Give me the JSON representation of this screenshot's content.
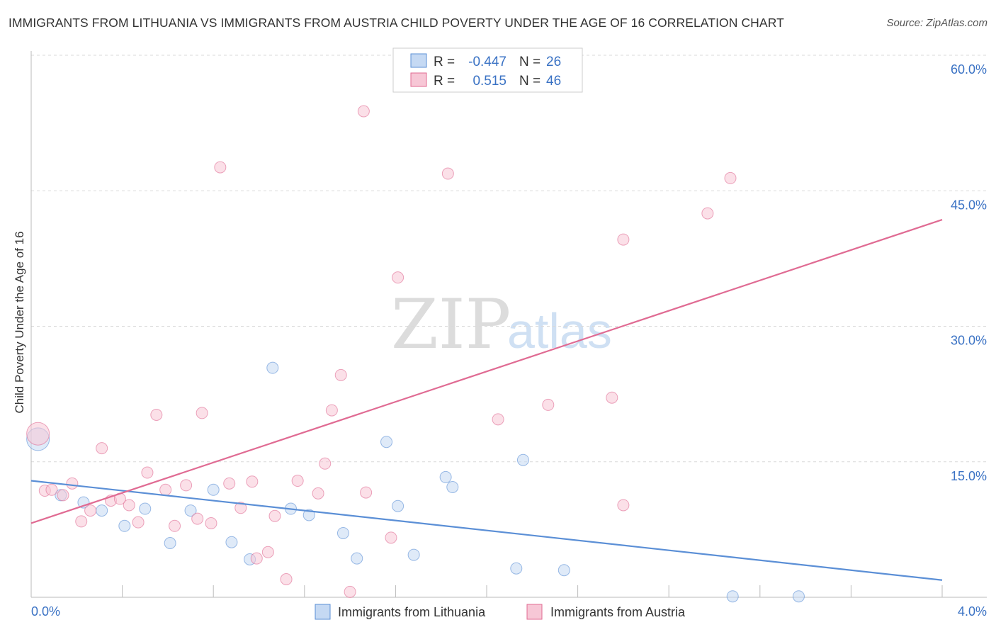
{
  "chart_data": {
    "type": "scatter",
    "title": "IMMIGRANTS FROM LITHUANIA VS IMMIGRANTS FROM AUSTRIA CHILD POVERTY UNDER THE AGE OF 16 CORRELATION CHART",
    "source": "Source: ZipAtlas.com",
    "xlabel": "",
    "ylabel": "Child Poverty Under the Age of 16",
    "xlim": [
      0,
      4
    ],
    "ylim": [
      0,
      60
    ],
    "x_tick_labels": [
      "0.0%",
      "4.0%"
    ],
    "y_ticks": [
      15,
      30,
      45,
      60
    ],
    "y_tick_labels": [
      "15.0%",
      "30.0%",
      "45.0%",
      "60.0%"
    ],
    "watermark": {
      "zip": "ZIP",
      "atlas": "atlas"
    },
    "legend_stats": {
      "r_label": "R =",
      "n_label": "N =",
      "rows": [
        {
          "r": "-0.447",
          "n": "26"
        },
        {
          "r": "0.515",
          "n": "46"
        }
      ]
    },
    "series": [
      {
        "name": "Immigrants from Lithuania",
        "color": "#5b8fd6",
        "fill": "#c5d9f3",
        "trend": {
          "x": [
            0,
            4
          ],
          "y": [
            12.9,
            1.9
          ]
        },
        "points": [
          {
            "x": 0.03,
            "y": 17.5,
            "big": true
          },
          {
            "x": 0.13,
            "y": 11.3
          },
          {
            "x": 0.23,
            "y": 10.5
          },
          {
            "x": 0.31,
            "y": 9.6
          },
          {
            "x": 0.41,
            "y": 7.9
          },
          {
            "x": 0.5,
            "y": 9.8
          },
          {
            "x": 0.61,
            "y": 6.0
          },
          {
            "x": 0.7,
            "y": 9.6
          },
          {
            "x": 0.8,
            "y": 11.9
          },
          {
            "x": 0.88,
            "y": 6.1
          },
          {
            "x": 0.96,
            "y": 4.2
          },
          {
            "x": 1.06,
            "y": 25.4
          },
          {
            "x": 1.14,
            "y": 9.8
          },
          {
            "x": 1.22,
            "y": 9.1
          },
          {
            "x": 1.37,
            "y": 7.1
          },
          {
            "x": 1.43,
            "y": 4.3
          },
          {
            "x": 1.56,
            "y": 17.2
          },
          {
            "x": 1.61,
            "y": 10.1
          },
          {
            "x": 1.68,
            "y": 4.7
          },
          {
            "x": 1.82,
            "y": 13.3
          },
          {
            "x": 1.85,
            "y": 12.2
          },
          {
            "x": 2.13,
            "y": 3.2
          },
          {
            "x": 2.16,
            "y": 15.2
          },
          {
            "x": 2.34,
            "y": 3.0
          },
          {
            "x": 3.08,
            "y": 0.1
          },
          {
            "x": 3.37,
            "y": 0.1
          }
        ]
      },
      {
        "name": "Immigrants from Austria",
        "color": "#e06b93",
        "fill": "#f7c7d6",
        "trend": {
          "x": [
            0,
            4
          ],
          "y": [
            8.2,
            41.8
          ]
        },
        "points": [
          {
            "x": 0.03,
            "y": 18.1,
            "big": true
          },
          {
            "x": 0.06,
            "y": 11.8
          },
          {
            "x": 0.09,
            "y": 11.9
          },
          {
            "x": 0.14,
            "y": 11.3
          },
          {
            "x": 0.18,
            "y": 12.6
          },
          {
            "x": 0.22,
            "y": 8.4
          },
          {
            "x": 0.26,
            "y": 9.6
          },
          {
            "x": 0.31,
            "y": 16.5
          },
          {
            "x": 0.35,
            "y": 10.7
          },
          {
            "x": 0.39,
            "y": 10.9
          },
          {
            "x": 0.43,
            "y": 10.2
          },
          {
            "x": 0.47,
            "y": 8.3
          },
          {
            "x": 0.51,
            "y": 13.8
          },
          {
            "x": 0.55,
            "y": 20.2
          },
          {
            "x": 0.59,
            "y": 11.9
          },
          {
            "x": 0.63,
            "y": 7.9
          },
          {
            "x": 0.68,
            "y": 12.4
          },
          {
            "x": 0.73,
            "y": 8.7
          },
          {
            "x": 0.75,
            "y": 20.4
          },
          {
            "x": 0.79,
            "y": 8.2
          },
          {
            "x": 0.83,
            "y": 47.6
          },
          {
            "x": 0.87,
            "y": 12.6
          },
          {
            "x": 0.92,
            "y": 9.9
          },
          {
            "x": 0.97,
            "y": 12.8
          },
          {
            "x": 0.99,
            "y": 4.3
          },
          {
            "x": 1.04,
            "y": 5.0
          },
          {
            "x": 1.07,
            "y": 9.0
          },
          {
            "x": 1.12,
            "y": 2.0
          },
          {
            "x": 1.17,
            "y": 12.9
          },
          {
            "x": 1.26,
            "y": 11.5
          },
          {
            "x": 1.29,
            "y": 14.8
          },
          {
            "x": 1.32,
            "y": 20.7
          },
          {
            "x": 1.36,
            "y": 24.6
          },
          {
            "x": 1.4,
            "y": 0.6
          },
          {
            "x": 1.46,
            "y": 53.8
          },
          {
            "x": 1.47,
            "y": 11.6
          },
          {
            "x": 1.58,
            "y": 6.6
          },
          {
            "x": 1.61,
            "y": 35.4
          },
          {
            "x": 1.83,
            "y": 46.9
          },
          {
            "x": 2.05,
            "y": 19.7
          },
          {
            "x": 2.27,
            "y": 21.3
          },
          {
            "x": 2.55,
            "y": 22.1
          },
          {
            "x": 2.6,
            "y": 39.6
          },
          {
            "x": 2.6,
            "y": 10.2
          },
          {
            "x": 2.97,
            "y": 42.5
          },
          {
            "x": 3.07,
            "y": 46.4
          }
        ]
      }
    ]
  }
}
